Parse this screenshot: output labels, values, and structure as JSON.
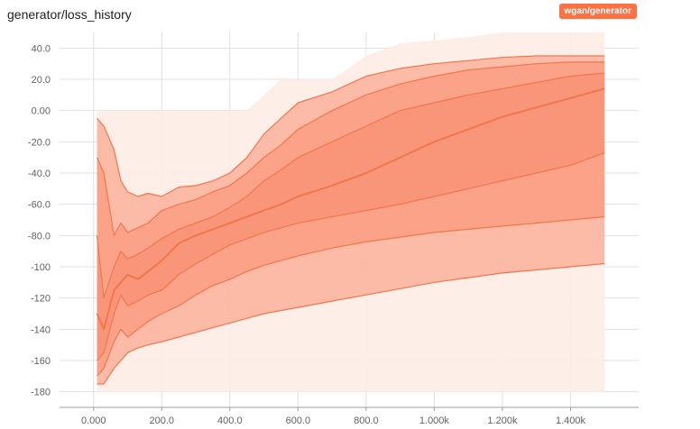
{
  "card": {
    "title": "generator/loss_history",
    "run_label": "wgan/generator"
  },
  "colors": {
    "accent": "#ff7043",
    "band_outer": "#fdece6",
    "band_mid": "#fbb19a",
    "band_inner": "#f98e70",
    "median_line": "#f2764d"
  },
  "chart_data": {
    "type": "area",
    "title": "generator/loss_history",
    "xlabel": "",
    "ylabel": "",
    "xlim": [
      -100,
      1600
    ],
    "ylim": [
      -190,
      50
    ],
    "x_ticks": [
      0,
      200,
      400,
      600,
      800,
      1000,
      1200,
      1400
    ],
    "x_tick_labels": [
      "0.000",
      "200.0",
      "400.0",
      "600.0",
      "800.0",
      "1.000k",
      "1.200k",
      "1.400k"
    ],
    "y_ticks": [
      40,
      20,
      0,
      -20,
      -40,
      -60,
      -80,
      -100,
      -120,
      -140,
      -160,
      -180
    ],
    "y_tick_labels": [
      "40.0",
      "20.0",
      "0.00",
      "-20.0",
      "-40.0",
      "-60.0",
      "-80.0",
      "-100",
      "-120",
      "-140",
      "-160",
      "-180"
    ],
    "grid": true,
    "legend": "top-right",
    "series": [
      {
        "name": "wgan/generator",
        "x": [
          10,
          30,
          60,
          80,
          100,
          130,
          160,
          200,
          250,
          300,
          350,
          400,
          450,
          500,
          550,
          600,
          700,
          800,
          900,
          1000,
          1100,
          1200,
          1300,
          1400,
          1500
        ],
        "max": [
          0,
          0,
          0,
          0,
          0,
          0,
          0,
          0,
          0,
          0,
          0,
          0,
          0,
          10,
          20,
          20,
          20,
          35,
          43,
          45,
          47,
          50,
          50,
          50,
          50
        ],
        "p93": [
          -5,
          -10,
          -25,
          -45,
          -52,
          -55,
          -53,
          -55,
          -49,
          -48,
          -45,
          -40,
          -30,
          -15,
          -5,
          5,
          12,
          22,
          27,
          30,
          32,
          34,
          35,
          35,
          35
        ],
        "p84": [
          -30,
          -40,
          -80,
          -72,
          -78,
          -75,
          -72,
          -64,
          -60,
          -57,
          -52,
          -48,
          -40,
          -30,
          -22,
          -12,
          0,
          10,
          17,
          22,
          26,
          28,
          30,
          31,
          31
        ],
        "p69": [
          -80,
          -120,
          -100,
          -90,
          -95,
          -92,
          -88,
          -82,
          -76,
          -72,
          -68,
          -62,
          -55,
          -45,
          -38,
          -30,
          -20,
          -10,
          0,
          5,
          10,
          14,
          18,
          22,
          24
        ],
        "p50": [
          -130,
          -140,
          -115,
          -110,
          -105,
          -108,
          -103,
          -96,
          -85,
          -80,
          -76,
          -72,
          -68,
          -64,
          -60,
          -55,
          -48,
          -40,
          -30,
          -20,
          -12,
          -4,
          2,
          8,
          14
        ],
        "p31": [
          -160,
          -155,
          -130,
          -118,
          -125,
          -122,
          -118,
          -115,
          -105,
          -98,
          -92,
          -86,
          -82,
          -78,
          -75,
          -72,
          -68,
          -64,
          -60,
          -55,
          -50,
          -45,
          -40,
          -35,
          -27
        ],
        "p16": [
          -170,
          -165,
          -148,
          -140,
          -145,
          -140,
          -135,
          -130,
          -125,
          -118,
          -112,
          -108,
          -103,
          -99,
          -96,
          -93,
          -88,
          -84,
          -81,
          -78,
          -76,
          -74,
          -72,
          -70,
          -68
        ],
        "p7": [
          -175,
          -175,
          -165,
          -160,
          -155,
          -152,
          -150,
          -148,
          -145,
          -142,
          -139,
          -136,
          -133,
          -130,
          -128,
          -126,
          -122,
          -118,
          -114,
          -110,
          -107,
          -104,
          -102,
          -100,
          -98
        ],
        "min": [
          -180,
          -180,
          -180,
          -180,
          -180,
          -180,
          -180,
          -180,
          -180,
          -180,
          -180,
          -180,
          -180,
          -180,
          -180,
          -180,
          -180,
          -180,
          -180,
          -180,
          -180,
          -180,
          -180,
          -180,
          -180
        ]
      }
    ]
  }
}
